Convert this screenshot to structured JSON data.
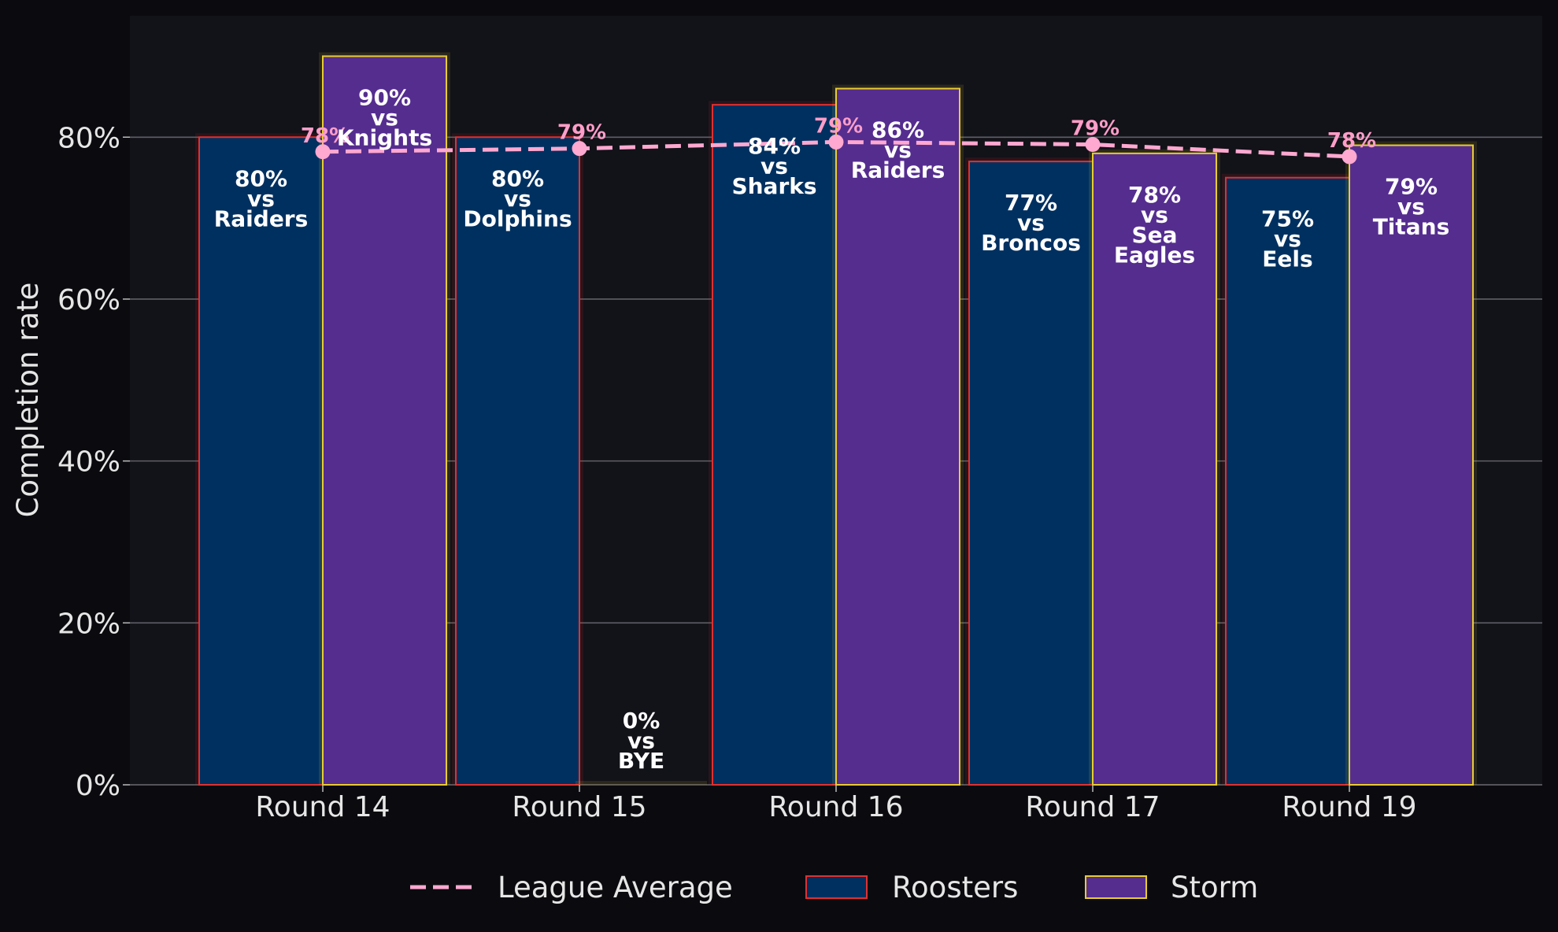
{
  "chart_data": {
    "type": "bar",
    "title": "",
    "xlabel": "",
    "ylabel": "Completion rate",
    "ylim": [
      0,
      95
    ],
    "y_ticks": [
      0,
      20,
      40,
      60,
      80
    ],
    "y_tick_suffix": "%",
    "grid": "y",
    "legend_position": "bottom",
    "categories": [
      "Round 14",
      "Round 15",
      "Round 16",
      "Round 17",
      "Round 19"
    ],
    "series": [
      {
        "name": "Roosters",
        "type": "bar",
        "color": "#003060",
        "edge_color": "#e03030",
        "values": [
          80,
          80,
          84,
          77,
          75
        ],
        "labels": [
          [
            "80%",
            "vs",
            "Raiders"
          ],
          [
            "80%",
            "vs",
            "Dolphins"
          ],
          [
            "84%",
            "vs",
            "Sharks"
          ],
          [
            "77%",
            "vs",
            "Broncos"
          ],
          [
            "75%",
            "vs",
            "Eels"
          ]
        ]
      },
      {
        "name": "Storm",
        "type": "bar",
        "color": "#552d8f",
        "edge_color": "#e8cc30",
        "values": [
          90,
          0,
          86,
          78,
          79
        ],
        "labels": [
          [
            "90%",
            "vs",
            "Knights"
          ],
          [
            "0%",
            "vs",
            "BYE"
          ],
          [
            "86%",
            "vs",
            "Raiders"
          ],
          [
            "78%",
            "vs",
            "Sea",
            "Eagles"
          ],
          [
            "79%",
            "vs",
            "Titans"
          ]
        ]
      },
      {
        "name": "League Average",
        "type": "line",
        "style": "dashed",
        "color": "#ffa8d0",
        "values": [
          78.2,
          78.6,
          79.4,
          79.1,
          77.6
        ],
        "labels": [
          "78%",
          "79%",
          "79%",
          "79%",
          "78%"
        ]
      }
    ]
  }
}
